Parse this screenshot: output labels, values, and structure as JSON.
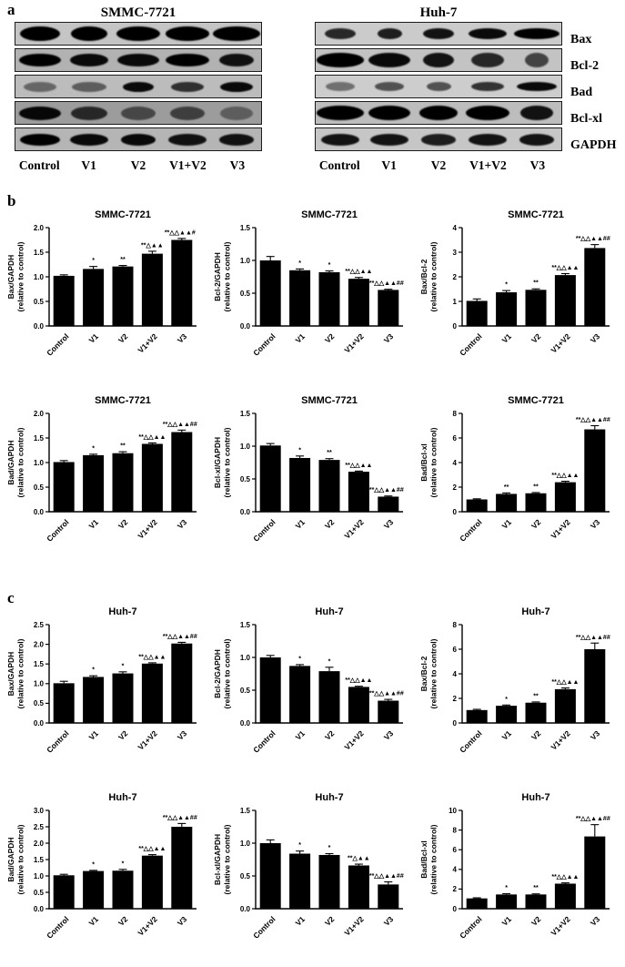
{
  "panels": {
    "a": {
      "label": "a",
      "blots": [
        {
          "name": "smmc-7721",
          "title": "SMMC-7721",
          "lanes": [
            "Control",
            "V1",
            "V2",
            "V1+V2",
            "V3"
          ],
          "row_labels_visible": false,
          "rows": [
            {
              "protein": "Bax",
              "bg": "#c5c5c5",
              "band_h": 16,
              "bands": [
                [
                  0.8,
                  1
                ],
                [
                  0.75,
                  1
                ],
                [
                  0.88,
                  1
                ],
                [
                  0.9,
                  1
                ],
                [
                  0.95,
                  1
                ]
              ]
            },
            {
              "protein": "Bcl-2",
              "bg": "#b2b2b2",
              "band_h": 14,
              "bands": [
                [
                  0.85,
                  1
                ],
                [
                  0.78,
                  0.95
                ],
                [
                  0.85,
                  0.95
                ],
                [
                  0.88,
                  1
                ],
                [
                  0.7,
                  0.9
                ]
              ]
            },
            {
              "protein": "Bad",
              "bg": "#bcbcbc",
              "band_h": 11,
              "bands": [
                [
                  0.68,
                  0.45
                ],
                [
                  0.72,
                  0.5
                ],
                [
                  0.62,
                  0.95
                ],
                [
                  0.68,
                  0.75
                ],
                [
                  0.65,
                  0.95
                ]
              ]
            },
            {
              "protein": "Bcl-xl",
              "bg": "#9c9c9c",
              "band_h": 15,
              "bands": [
                [
                  0.85,
                  0.95
                ],
                [
                  0.75,
                  0.75
                ],
                [
                  0.7,
                  0.55
                ],
                [
                  0.7,
                  0.6
                ],
                [
                  0.65,
                  0.4
                ]
              ]
            },
            {
              "protein": "GAPDH",
              "bg": "#b5b5b5",
              "band_h": 13,
              "bands": [
                [
                  0.8,
                  1
                ],
                [
                  0.78,
                  0.95
                ],
                [
                  0.72,
                  0.95
                ],
                [
                  0.78,
                  0.9
                ],
                [
                  0.72,
                  0.9
                ]
              ]
            }
          ]
        },
        {
          "name": "huh-7",
          "title": "Huh-7",
          "lanes": [
            "Control",
            "V1",
            "V2",
            "V1+V2",
            "V3"
          ],
          "row_labels_visible": true,
          "rows": [
            {
              "protein": "Bax",
              "bg": "#cbcbcb",
              "band_h": 12,
              "bands": [
                [
                  0.62,
                  0.8
                ],
                [
                  0.5,
                  0.85
                ],
                [
                  0.62,
                  0.9
                ],
                [
                  0.78,
                  0.95
                ],
                [
                  0.92,
                  1
                ]
              ]
            },
            {
              "protein": "Bcl-2",
              "bg": "#c3c3c3",
              "band_h": 16,
              "bands": [
                [
                  0.98,
                  1
                ],
                [
                  0.85,
                  0.95
                ],
                [
                  0.62,
                  0.9
                ],
                [
                  0.65,
                  0.8
                ],
                [
                  0.48,
                  0.65
                ]
              ]
            },
            {
              "protein": "Bad",
              "bg": "#cdcdcd",
              "band_h": 10,
              "bands": [
                [
                  0.58,
                  0.45
                ],
                [
                  0.6,
                  0.6
                ],
                [
                  0.5,
                  0.6
                ],
                [
                  0.65,
                  0.75
                ],
                [
                  0.8,
                  0.95
                ]
              ]
            },
            {
              "protein": "Bcl-xl",
              "bg": "#bdbdbd",
              "band_h": 16,
              "bands": [
                [
                  0.95,
                  1
                ],
                [
                  0.85,
                  1
                ],
                [
                  0.78,
                  1
                ],
                [
                  0.88,
                  1
                ],
                [
                  0.68,
                  0.9
                ]
              ]
            },
            {
              "protein": "GAPDH",
              "bg": "#c6c6c6",
              "band_h": 13,
              "bands": [
                [
                  0.78,
                  0.9
                ],
                [
                  0.78,
                  0.9
                ],
                [
                  0.72,
                  0.85
                ],
                [
                  0.78,
                  0.9
                ],
                [
                  0.72,
                  0.9
                ]
              ]
            }
          ]
        }
      ]
    },
    "b": {
      "label": "b",
      "cell_line": "SMMC-7721"
    },
    "c": {
      "label": "c",
      "cell_line": "Huh-7"
    }
  },
  "bar_color": "#000000",
  "chart_data": [
    {
      "type": "bar",
      "panel": "b",
      "title": "SMMC-7721",
      "ylabel": "Bax/GAPDH",
      "ylabel2": "(relative to control)",
      "categories": [
        "Control",
        "V1",
        "V2",
        "V1+V2",
        "V3"
      ],
      "values": [
        1.02,
        1.16,
        1.21,
        1.47,
        1.75
      ],
      "errors": [
        0.02,
        0.05,
        0.02,
        0.05,
        0.03
      ],
      "annotations": [
        "",
        "*",
        "**",
        "**△▲▲",
        "**△△▲▲#"
      ],
      "ylim": [
        0,
        2
      ],
      "yticks": [
        "0.0",
        "0.5",
        "1.0",
        "1.5",
        "2.0"
      ]
    },
    {
      "type": "bar",
      "panel": "b",
      "title": "SMMC-7721",
      "ylabel": "Bcl-2/GAPDH",
      "ylabel2": "(relative to control)",
      "categories": [
        "Control",
        "V1",
        "V2",
        "V1+V2",
        "V3"
      ],
      "values": [
        1.0,
        0.85,
        0.82,
        0.72,
        0.55
      ],
      "errors": [
        0.06,
        0.02,
        0.02,
        0.02,
        0.01
      ],
      "annotations": [
        "",
        "*",
        "*",
        "**△△▲▲",
        "**△△▲▲##"
      ],
      "ylim": [
        0,
        1.5
      ],
      "yticks": [
        "0.0",
        "0.5",
        "1.0",
        "1.5"
      ]
    },
    {
      "type": "bar",
      "panel": "b",
      "title": "SMMC-7721",
      "ylabel": "Bax/Bcl-2",
      "ylabel2": "(relative to control)",
      "categories": [
        "Control",
        "V1",
        "V2",
        "V1+V2",
        "V3"
      ],
      "values": [
        1.02,
        1.37,
        1.47,
        2.07,
        3.17
      ],
      "errors": [
        0.08,
        0.07,
        0.04,
        0.06,
        0.14
      ],
      "annotations": [
        "",
        "*",
        "**",
        "**△△▲▲",
        "**△△▲▲##"
      ],
      "ylim": [
        0,
        4
      ],
      "yticks": [
        "0",
        "1",
        "2",
        "3",
        "4"
      ]
    },
    {
      "type": "bar",
      "panel": "b",
      "title": "SMMC-7721",
      "ylabel": "Bad/GAPDH",
      "ylabel2": "(relative to control)",
      "categories": [
        "Control",
        "V1",
        "V2",
        "V1+V2",
        "V3"
      ],
      "values": [
        1.01,
        1.15,
        1.19,
        1.38,
        1.62
      ],
      "errors": [
        0.03,
        0.02,
        0.03,
        0.02,
        0.04
      ],
      "annotations": [
        "",
        "*",
        "**",
        "**△△▲▲",
        "**△△▲▲##"
      ],
      "ylim": [
        0,
        2
      ],
      "yticks": [
        "0.0",
        "0.5",
        "1.0",
        "1.5",
        "2.0"
      ]
    },
    {
      "type": "bar",
      "panel": "b",
      "title": "SMMC-7721",
      "ylabel": "Bcl-xl/GAPDH",
      "ylabel2": "(relative to control)",
      "categories": [
        "Control",
        "V1",
        "V2",
        "V1+V2",
        "V3"
      ],
      "values": [
        1.01,
        0.82,
        0.79,
        0.61,
        0.23
      ],
      "errors": [
        0.03,
        0.03,
        0.02,
        0.01,
        0.01
      ],
      "annotations": [
        "",
        "*",
        "**",
        "**△△▲▲",
        "**△△▲▲##"
      ],
      "ylim": [
        0,
        1.5
      ],
      "yticks": [
        "0.0",
        "0.5",
        "1.0",
        "1.5"
      ]
    },
    {
      "type": "bar",
      "panel": "b",
      "title": "SMMC-7721",
      "ylabel": "Bad/Bcl-xl",
      "ylabel2": "(relative to control)",
      "categories": [
        "Control",
        "V1",
        "V2",
        "V1+V2",
        "V3"
      ],
      "values": [
        1.0,
        1.45,
        1.5,
        2.4,
        6.7
      ],
      "errors": [
        0.05,
        0.08,
        0.06,
        0.08,
        0.3
      ],
      "annotations": [
        "",
        "**",
        "**",
        "**△△▲▲",
        "**△△▲▲##"
      ],
      "ylim": [
        0,
        8
      ],
      "yticks": [
        "0",
        "2",
        "4",
        "6",
        "8"
      ]
    },
    {
      "type": "bar",
      "panel": "c",
      "title": "Huh-7",
      "ylabel": "Bax/GAPDH",
      "ylabel2": "(relative to control)",
      "categories": [
        "Control",
        "V1",
        "V2",
        "V1+V2",
        "V3"
      ],
      "values": [
        1.01,
        1.17,
        1.26,
        1.51,
        2.02
      ],
      "errors": [
        0.05,
        0.03,
        0.04,
        0.02,
        0.03
      ],
      "annotations": [
        "",
        "*",
        "*",
        "**△△▲▲",
        "**△△▲▲##"
      ],
      "ylim": [
        0,
        2.5
      ],
      "yticks": [
        "0.0",
        "0.5",
        "1.0",
        "1.5",
        "2.0",
        "2.5"
      ]
    },
    {
      "type": "bar",
      "panel": "c",
      "title": "Huh-7",
      "ylabel": "Bcl-2/GAPDH",
      "ylabel2": "(relative to control)",
      "categories": [
        "Control",
        "V1",
        "V2",
        "V1+V2",
        "V3"
      ],
      "values": [
        1.0,
        0.87,
        0.79,
        0.55,
        0.34
      ],
      "errors": [
        0.03,
        0.02,
        0.06,
        0.01,
        0.02
      ],
      "annotations": [
        "",
        "*",
        "*",
        "**△△▲▲",
        "**△△▲▲##"
      ],
      "ylim": [
        0,
        1.5
      ],
      "yticks": [
        "0.0",
        "0.5",
        "1.0",
        "1.5"
      ]
    },
    {
      "type": "bar",
      "panel": "c",
      "title": "Huh-7",
      "ylabel": "Bax/Bcl-2",
      "ylabel2": "(relative to control)",
      "categories": [
        "Control",
        "V1",
        "V2",
        "V1+V2",
        "V3"
      ],
      "values": [
        1.05,
        1.4,
        1.65,
        2.75,
        6.0
      ],
      "errors": [
        0.06,
        0.06,
        0.06,
        0.1,
        0.5
      ],
      "annotations": [
        "",
        "*",
        "**",
        "**△△▲▲",
        "**△△▲▲##"
      ],
      "ylim": [
        0,
        8
      ],
      "yticks": [
        "0",
        "2",
        "4",
        "6",
        "8"
      ]
    },
    {
      "type": "bar",
      "panel": "c",
      "title": "Huh-7",
      "ylabel": "Bad/GAPDH",
      "ylabel2": "(relative to control)",
      "categories": [
        "Control",
        "V1",
        "V2",
        "V1+V2",
        "V3"
      ],
      "values": [
        1.02,
        1.15,
        1.16,
        1.62,
        2.5
      ],
      "errors": [
        0.03,
        0.02,
        0.04,
        0.03,
        0.1
      ],
      "annotations": [
        "",
        "*",
        "*",
        "**△△▲▲",
        "**△△▲▲##"
      ],
      "ylim": [
        0,
        3
      ],
      "yticks": [
        "0.0",
        "0.5",
        "1.0",
        "1.5",
        "2.0",
        "2.5",
        "3.0"
      ]
    },
    {
      "type": "bar",
      "panel": "c",
      "title": "Huh-7",
      "ylabel": "Bcl-xl/GAPDH",
      "ylabel2": "(relative to control)",
      "categories": [
        "Control",
        "V1",
        "V2",
        "V1+V2",
        "V3"
      ],
      "values": [
        1.0,
        0.84,
        0.82,
        0.66,
        0.37
      ],
      "errors": [
        0.05,
        0.04,
        0.02,
        0.02,
        0.04
      ],
      "annotations": [
        "",
        "*",
        "*",
        "**△▲▲",
        "**△△▲▲##"
      ],
      "ylim": [
        0,
        1.5
      ],
      "yticks": [
        "0.0",
        "0.5",
        "1.0",
        "1.5"
      ]
    },
    {
      "type": "bar",
      "panel": "c",
      "title": "Huh-7",
      "ylabel": "Bad/Bcl-xl",
      "ylabel2": "(relative to control)",
      "categories": [
        "Control",
        "V1",
        "V2",
        "V1+V2",
        "V3"
      ],
      "values": [
        1.05,
        1.45,
        1.45,
        2.55,
        7.35
      ],
      "errors": [
        0.06,
        0.08,
        0.06,
        0.08,
        1.2
      ],
      "annotations": [
        "",
        "*",
        "**",
        "**△△▲▲",
        "**△△▲▲##"
      ],
      "ylim": [
        0,
        10
      ],
      "yticks": [
        "0",
        "2",
        "4",
        "6",
        "8",
        "10"
      ]
    }
  ]
}
